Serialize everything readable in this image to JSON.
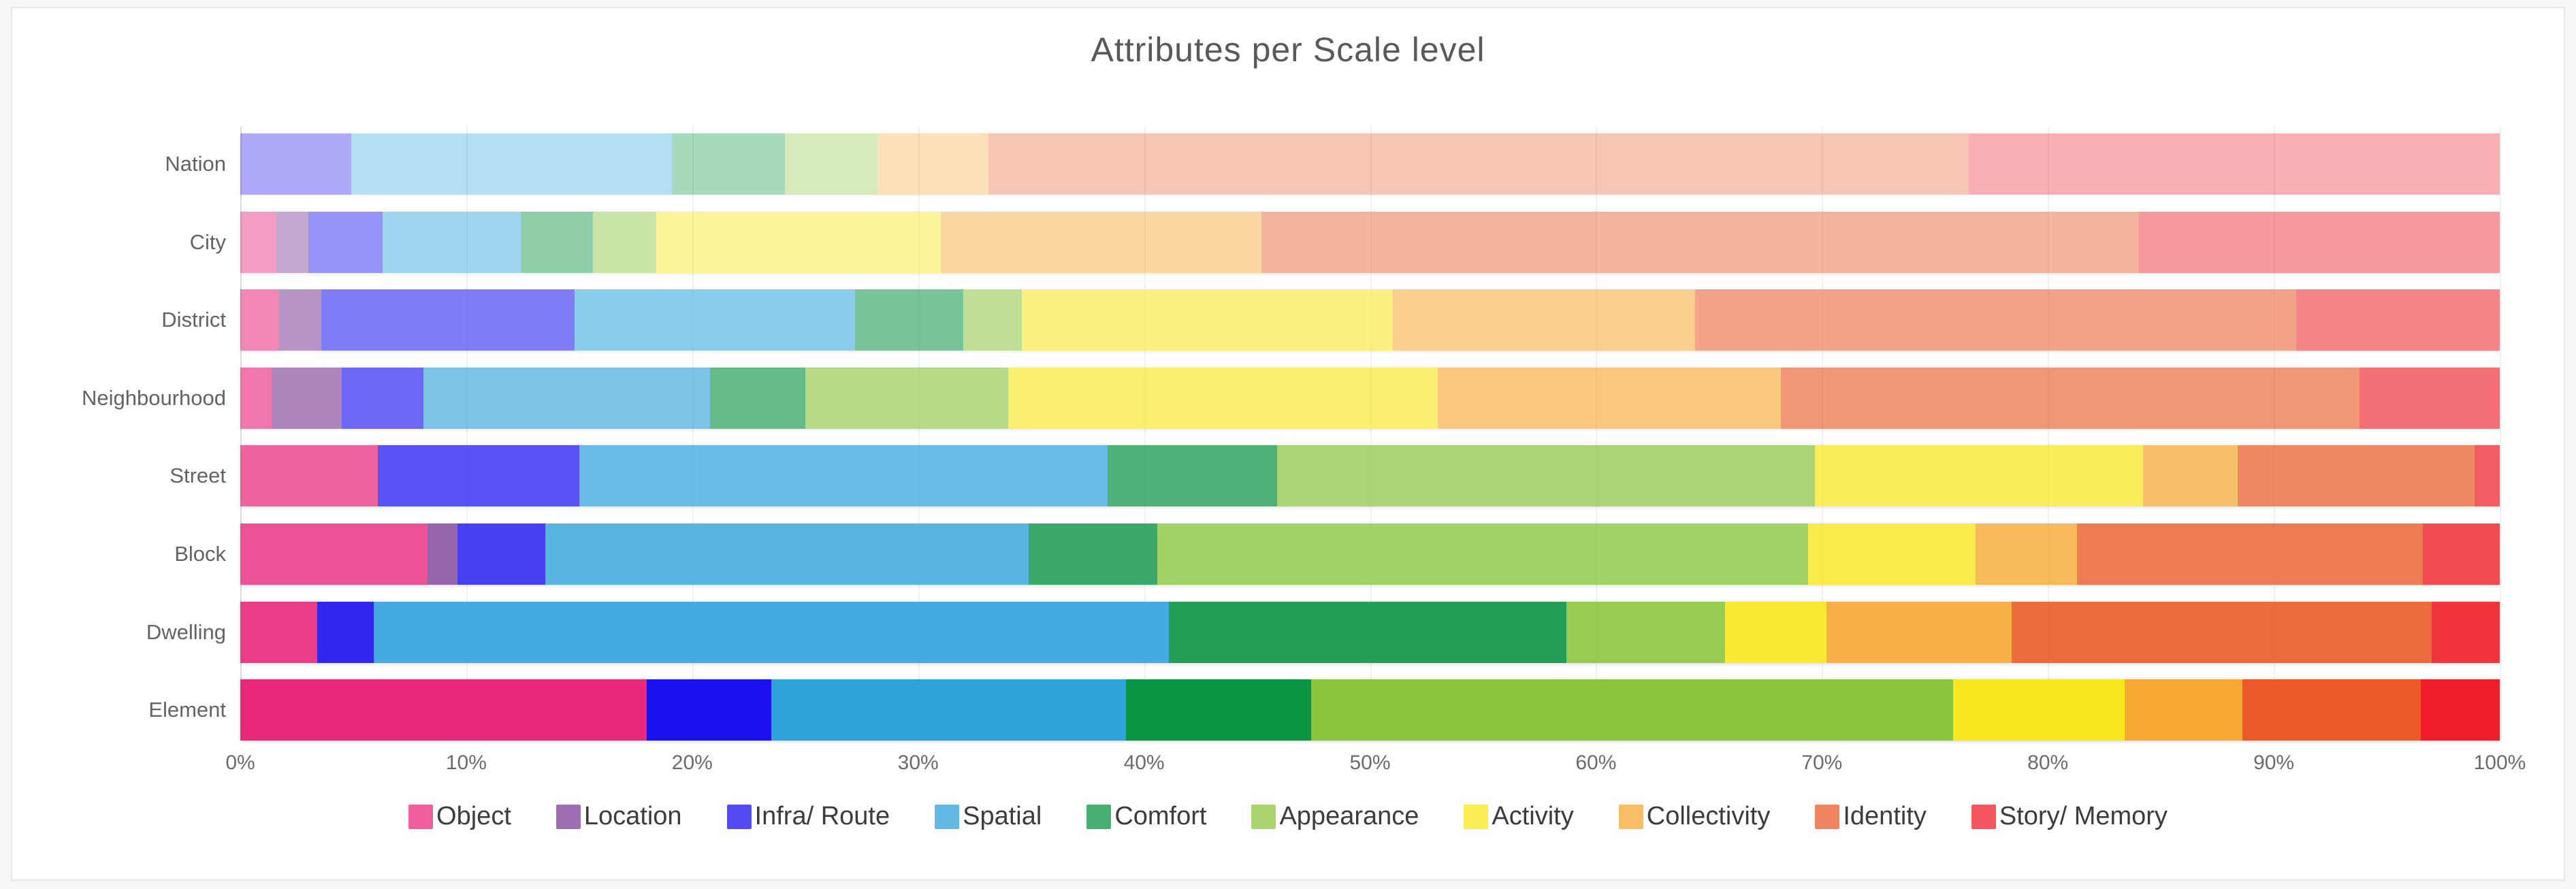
{
  "title": "Attributes per Scale level",
  "chart_data": {
    "type": "bar",
    "orientation": "horizontal",
    "stacked": true,
    "title": "Attributes per Scale level",
    "categories": [
      "Nation",
      "City",
      "District",
      "Neighbourhood",
      "Street",
      "Block",
      "Dwelling",
      "Element"
    ],
    "row_opacity": [
      0.35,
      0.45,
      0.55,
      0.63,
      0.72,
      0.8,
      0.9,
      1.0
    ],
    "series": [
      {
        "name": "Object",
        "color": "#E8287B",
        "values": [
          0,
          1.6,
          1.7,
          1.4,
          6.1,
          8.3,
          3.4,
          18.0
        ]
      },
      {
        "name": "Location",
        "color": "#7D3F98",
        "values": [
          0,
          1.4,
          1.9,
          3.1,
          0,
          1.3,
          0,
          0
        ]
      },
      {
        "name": "Infra/ Route",
        "color": "#1A10F0",
        "values": [
          4.9,
          3.3,
          11.2,
          3.6,
          8.9,
          3.9,
          2.5,
          5.5
        ]
      },
      {
        "name": "Spatial",
        "color": "#2FA3DC",
        "values": [
          14.2,
          6.1,
          12.4,
          12.7,
          23.4,
          21.4,
          35.2,
          15.7
        ]
      },
      {
        "name": "Comfort",
        "color": "#0B9444",
        "values": [
          5.0,
          3.2,
          4.8,
          4.2,
          7.5,
          5.7,
          17.6,
          8.2
        ]
      },
      {
        "name": "Appearance",
        "color": "#8CC63F",
        "values": [
          4.1,
          2.8,
          2.6,
          9.0,
          23.8,
          28.8,
          7.0,
          28.4
        ]
      },
      {
        "name": "Activity",
        "color": "#F8E71C",
        "values": [
          0,
          12.6,
          16.4,
          19.0,
          14.5,
          7.4,
          4.5,
          7.6
        ]
      },
      {
        "name": "Collectivity",
        "color": "#F7A833",
        "values": [
          4.9,
          14.2,
          13.4,
          15.2,
          4.2,
          4.5,
          8.2,
          5.2
        ]
      },
      {
        "name": "Identity",
        "color": "#EA5B28",
        "values": [
          43.4,
          38.8,
          26.6,
          25.6,
          10.5,
          15.3,
          18.6,
          7.9
        ]
      },
      {
        "name": "Story/ Memory",
        "color": "#F01E28",
        "values": [
          23.5,
          16.0,
          9.0,
          6.2,
          1.1,
          3.4,
          3.0,
          3.5
        ]
      }
    ],
    "xlabel": "",
    "ylabel": "",
    "x_axis": {
      "min": 0,
      "max": 100,
      "tick_step": 10,
      "tick_labels": [
        "0%",
        "10%",
        "20%",
        "30%",
        "40%",
        "50%",
        "60%",
        "70%",
        "80%",
        "90%",
        "100%"
      ]
    },
    "grid": true,
    "legend_position": "bottom"
  },
  "style": {
    "title_color": "#58595b",
    "axis_label_color": "#6b6b6b",
    "grid_color": "#f1f1f1",
    "axis_line_color": "#dedede",
    "card_border_color": "#e7e7e7",
    "background": "#ffffff"
  }
}
